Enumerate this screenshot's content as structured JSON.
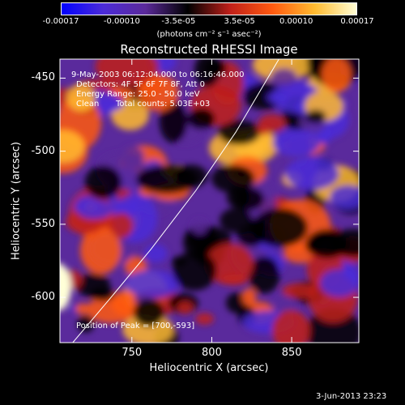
{
  "colorbar": {
    "gradient": [
      "#0000ff",
      "#4b2bd8",
      "#5b2a9a",
      "#000000",
      "#c0201a",
      "#ff5a10",
      "#ffbb30",
      "#ffffd8"
    ],
    "ticks": [
      {
        "label": "-0.00017",
        "value": -0.00017
      },
      {
        "label": "-0.00010",
        "value": -0.0001
      },
      {
        "label": "-3.5e-05",
        "value": -3.5e-05
      },
      {
        "label": "3.5e-05",
        "value": 3.5e-05
      },
      {
        "label": "0.00010",
        "value": 0.0001
      },
      {
        "label": "0.00017",
        "value": 0.00017
      }
    ],
    "units": "(photons cm⁻² s⁻¹ asec⁻²)"
  },
  "chart_data": {
    "type": "heatmap",
    "title": "Reconstructed RHESSI Image",
    "xlabel": "Heliocentric X (arcsec)",
    "ylabel": "Heliocentric Y (arcsec)",
    "xlim": [
      705,
      892
    ],
    "ylim": [
      -631,
      -437
    ],
    "xticks": [
      750,
      800,
      850
    ],
    "yticks": [
      -450,
      -500,
      -550,
      -600
    ],
    "grid": false,
    "peak": {
      "x": 700,
      "y": -593
    },
    "limb_curve": [
      [
        713,
        -631
      ],
      [
        737,
        -600
      ],
      [
        762,
        -567
      ],
      [
        790,
        -527
      ],
      [
        815,
        -487
      ],
      [
        842,
        -437
      ]
    ],
    "annotations": [
      "9-May-2003 06:12:04.000 to 06:16:46.000",
      "Detectors: 4F 5F 6F 7F 8F, Att 0",
      "Energy Range: 25.0 - 50.0 keV",
      "Clean",
      "Total counts: 5.03E+03",
      "Position of Peak = [700,-593]"
    ]
  },
  "footer": {
    "timestamp": "3-Jun-2013 23:23"
  }
}
